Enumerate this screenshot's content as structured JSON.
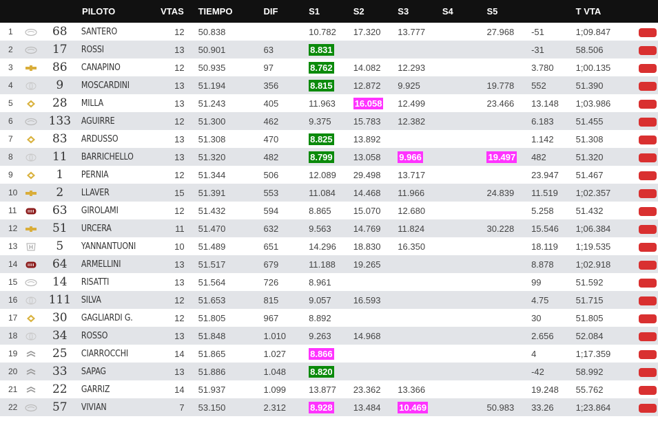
{
  "headers": {
    "pos": "",
    "brand": "",
    "num": "",
    "piloto": "PILOTO",
    "vtas": "VTAS",
    "tiempo": "TIEMPO",
    "dif": "DIF",
    "s1": "S1",
    "s2": "S2",
    "s3": "S3",
    "s4": "S4",
    "s5": "S5",
    "extra": "",
    "tvta": "T VTA",
    "flag": ""
  },
  "colors": {
    "header_bg": "#111111",
    "row_alt": "#e2e4e8",
    "best_green": "#0b8a0b",
    "best_pink": "#ff33ff",
    "flag_red": "#d93030"
  },
  "rows": [
    {
      "pos": "1",
      "brand": "ford-logo",
      "num": "68",
      "name": "SANTERO",
      "laps": "12",
      "time": "50.838",
      "dif": "",
      "s1": "10.782",
      "s2": "17.320",
      "s3": "13.777",
      "s4": "",
      "s5": "27.968",
      "extra": "-51",
      "tvta": "1;09.847",
      "s1_hl": "",
      "s2_hl": "",
      "s3_hl": "",
      "s5_hl": ""
    },
    {
      "pos": "2",
      "brand": "ford-logo",
      "num": "17",
      "name": "ROSSI",
      "laps": "13",
      "time": "50.901",
      "dif": "63",
      "s1": "8.831",
      "s2": "",
      "s3": "",
      "s4": "",
      "s5": "",
      "extra": "-31",
      "tvta": "58.506",
      "s1_hl": "green",
      "s2_hl": "",
      "s3_hl": "",
      "s5_hl": ""
    },
    {
      "pos": "3",
      "brand": "chevrolet-logo",
      "num": "86",
      "name": "CANAPINO",
      "laps": "12",
      "time": "50.935",
      "dif": "97",
      "s1": "8.762",
      "s2": "14.082",
      "s3": "12.293",
      "s4": "",
      "s5": "",
      "extra": "3.780",
      "tvta": "1;00.135",
      "s1_hl": "green",
      "s2_hl": "",
      "s3_hl": "",
      "s5_hl": ""
    },
    {
      "pos": "4",
      "brand": "toyota-logo",
      "num": "9",
      "name": "MOSCARDINI",
      "laps": "13",
      "time": "51.194",
      "dif": "356",
      "s1": "8.815",
      "s2": "12.872",
      "s3": "9.925",
      "s4": "",
      "s5": "19.778",
      "extra": "552",
      "tvta": "51.390",
      "s1_hl": "green",
      "s2_hl": "",
      "s3_hl": "",
      "s5_hl": ""
    },
    {
      "pos": "5",
      "brand": "renault-logo",
      "num": "28",
      "name": "MILLA",
      "laps": "13",
      "time": "51.243",
      "dif": "405",
      "s1": "11.963",
      "s2": "16.058",
      "s3": "12.499",
      "s4": "",
      "s5": "23.466",
      "extra": "13.148",
      "tvta": "1;03.986",
      "s1_hl": "",
      "s2_hl": "pink",
      "s3_hl": "",
      "s5_hl": ""
    },
    {
      "pos": "6",
      "brand": "ford-logo",
      "num": "133",
      "name": "AGUIRRE",
      "laps": "12",
      "time": "51.300",
      "dif": "462",
      "s1": "9.375",
      "s2": "15.783",
      "s3": "12.382",
      "s4": "",
      "s5": "",
      "extra": "6.183",
      "tvta": "51.455",
      "s1_hl": "",
      "s2_hl": "",
      "s3_hl": "",
      "s5_hl": ""
    },
    {
      "pos": "7",
      "brand": "renault-logo",
      "num": "83",
      "name": "ARDUSSO",
      "laps": "13",
      "time": "51.308",
      "dif": "470",
      "s1": "8.825",
      "s2": "13.892",
      "s3": "",
      "s4": "",
      "s5": "",
      "extra": "1.142",
      "tvta": "51.308",
      "s1_hl": "green",
      "s2_hl": "",
      "s3_hl": "",
      "s5_hl": ""
    },
    {
      "pos": "8",
      "brand": "toyota-logo",
      "num": "11",
      "name": "BARRICHELLO",
      "laps": "13",
      "time": "51.320",
      "dif": "482",
      "s1": "8.799",
      "s2": "13.058",
      "s3": "9.966",
      "s4": "",
      "s5": "19.497",
      "extra": "482",
      "tvta": "51.320",
      "s1_hl": "green",
      "s2_hl": "",
      "s3_hl": "pink",
      "s5_hl": "pink"
    },
    {
      "pos": "9",
      "brand": "renault-logo",
      "num": "1",
      "name": "PERNIA",
      "laps": "12",
      "time": "51.344",
      "dif": "506",
      "s1": "12.089",
      "s2": "29.498",
      "s3": "13.717",
      "s4": "",
      "s5": "",
      "extra": "23.947",
      "tvta": "51.467",
      "s1_hl": "",
      "s2_hl": "",
      "s3_hl": "",
      "s5_hl": ""
    },
    {
      "pos": "10",
      "brand": "chevrolet-logo",
      "num": "2",
      "name": "LLAVER",
      "laps": "15",
      "time": "51.391",
      "dif": "553",
      "s1": "11.084",
      "s2": "14.468",
      "s3": "11.966",
      "s4": "",
      "s5": "24.839",
      "extra": "11.519",
      "tvta": "1;02.357",
      "s1_hl": "",
      "s2_hl": "",
      "s3_hl": "",
      "s5_hl": ""
    },
    {
      "pos": "11",
      "brand": "fiat-logo",
      "num": "63",
      "name": "GIROLAMI",
      "laps": "12",
      "time": "51.432",
      "dif": "594",
      "s1": "8.865",
      "s2": "15.070",
      "s3": "12.680",
      "s4": "",
      "s5": "",
      "extra": "5.258",
      "tvta": "51.432",
      "s1_hl": "",
      "s2_hl": "",
      "s3_hl": "",
      "s5_hl": ""
    },
    {
      "pos": "12",
      "brand": "chevrolet-logo",
      "num": "51",
      "name": "URCERA",
      "laps": "11",
      "time": "51.470",
      "dif": "632",
      "s1": "9.563",
      "s2": "14.769",
      "s3": "11.824",
      "s4": "",
      "s5": "30.228",
      "extra": "15.546",
      "tvta": "1;06.384",
      "s1_hl": "",
      "s2_hl": "",
      "s3_hl": "",
      "s5_hl": ""
    },
    {
      "pos": "13",
      "brand": "honda-logo",
      "num": "5",
      "name": "YANNANTUONI",
      "laps": "10",
      "time": "51.489",
      "dif": "651",
      "s1": "14.296",
      "s2": "18.830",
      "s3": "16.350",
      "s4": "",
      "s5": "",
      "extra": "18.119",
      "tvta": "1;19.535",
      "s1_hl": "",
      "s2_hl": "",
      "s3_hl": "",
      "s5_hl": ""
    },
    {
      "pos": "14",
      "brand": "fiat-logo",
      "num": "64",
      "name": "ARMELLINI",
      "laps": "13",
      "time": "51.517",
      "dif": "679",
      "s1": "11.188",
      "s2": "19.265",
      "s3": "",
      "s4": "",
      "s5": "",
      "extra": "8.878",
      "tvta": "1;02.918",
      "s1_hl": "",
      "s2_hl": "",
      "s3_hl": "",
      "s5_hl": ""
    },
    {
      "pos": "15",
      "brand": "ford-logo",
      "num": "14",
      "name": "RISATTI",
      "laps": "13",
      "time": "51.564",
      "dif": "726",
      "s1": "8.961",
      "s2": "",
      "s3": "",
      "s4": "",
      "s5": "",
      "extra": "99",
      "tvta": "51.592",
      "s1_hl": "",
      "s2_hl": "",
      "s3_hl": "",
      "s5_hl": ""
    },
    {
      "pos": "16",
      "brand": "toyota-logo",
      "num": "111",
      "name": "SILVA",
      "laps": "12",
      "time": "51.653",
      "dif": "815",
      "s1": "9.057",
      "s2": "16.593",
      "s3": "",
      "s4": "",
      "s5": "",
      "extra": "4.75",
      "tvta": "51.715",
      "s1_hl": "",
      "s2_hl": "",
      "s3_hl": "",
      "s5_hl": ""
    },
    {
      "pos": "17",
      "brand": "renault-logo",
      "num": "30",
      "name": "GAGLIARDI G.",
      "laps": "12",
      "time": "51.805",
      "dif": "967",
      "s1": "8.892",
      "s2": "",
      "s3": "",
      "s4": "",
      "s5": "",
      "extra": "30",
      "tvta": "51.805",
      "s1_hl": "",
      "s2_hl": "",
      "s3_hl": "",
      "s5_hl": ""
    },
    {
      "pos": "18",
      "brand": "toyota-logo",
      "num": "34",
      "name": "ROSSO",
      "laps": "13",
      "time": "51.848",
      "dif": "1.010",
      "s1": "9.263",
      "s2": "14.968",
      "s3": "",
      "s4": "",
      "s5": "",
      "extra": "2.656",
      "tvta": "52.084",
      "s1_hl": "",
      "s2_hl": "",
      "s3_hl": "",
      "s5_hl": ""
    },
    {
      "pos": "19",
      "brand": "citroen-logo",
      "num": "25",
      "name": "CIARROCCHI",
      "laps": "14",
      "time": "51.865",
      "dif": "1.027",
      "s1": "8.866",
      "s2": "",
      "s3": "",
      "s4": "",
      "s5": "",
      "extra": "4",
      "tvta": "1;17.359",
      "s1_hl": "pink",
      "s2_hl": "",
      "s3_hl": "",
      "s5_hl": ""
    },
    {
      "pos": "20",
      "brand": "citroen-logo",
      "num": "33",
      "name": "SAPAG",
      "laps": "13",
      "time": "51.886",
      "dif": "1.048",
      "s1": "8.820",
      "s2": "",
      "s3": "",
      "s4": "",
      "s5": "",
      "extra": "-42",
      "tvta": "58.992",
      "s1_hl": "green",
      "s2_hl": "",
      "s3_hl": "",
      "s5_hl": ""
    },
    {
      "pos": "21",
      "brand": "citroen-logo",
      "num": "22",
      "name": "GARRIZ",
      "laps": "14",
      "time": "51.937",
      "dif": "1.099",
      "s1": "13.877",
      "s2": "23.362",
      "s3": "13.366",
      "s4": "",
      "s5": "",
      "extra": "19.248",
      "tvta": "55.762",
      "s1_hl": "",
      "s2_hl": "",
      "s3_hl": "",
      "s5_hl": ""
    },
    {
      "pos": "22",
      "brand": "ford-logo",
      "num": "57",
      "name": "VIVIAN",
      "laps": "7",
      "time": "53.150",
      "dif": "2.312",
      "s1": "8.928",
      "s2": "13.484",
      "s3": "10.469",
      "s4": "",
      "s5": "50.983",
      "extra": "33.26",
      "tvta": "1;23.864",
      "s1_hl": "pink",
      "s2_hl": "",
      "s3_hl": "pink",
      "s5_hl": ""
    }
  ]
}
